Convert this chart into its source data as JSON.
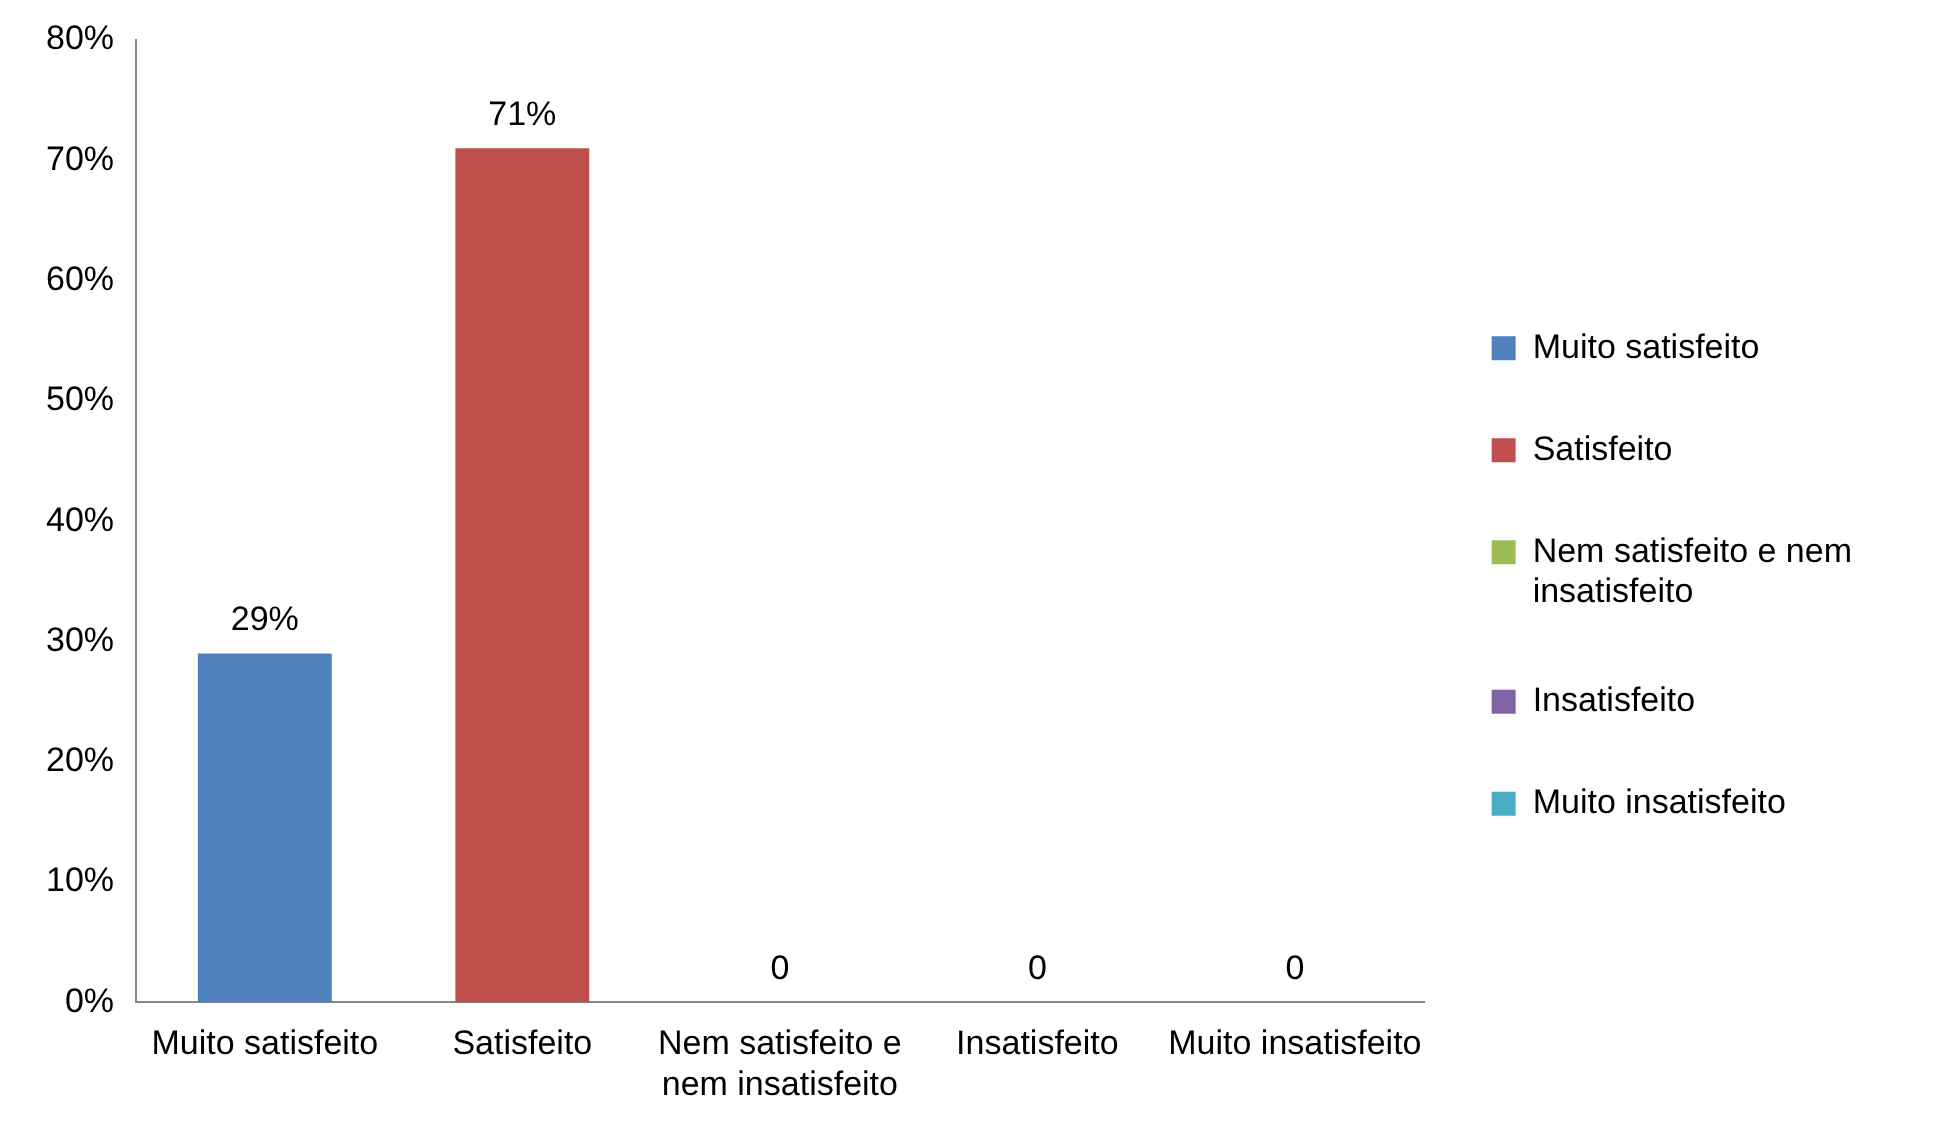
{
  "chart_data": {
    "type": "bar",
    "categories": [
      "Muito satisfeito",
      "Satisfeito",
      "Nem satisfeito e nem insatisfeito",
      "Insatisfeito",
      "Muito insatisfeito"
    ],
    "series": [
      {
        "name": "Muito satisfeito",
        "color": "#4f81bd",
        "values": [
          29,
          null,
          null,
          null,
          null
        ],
        "value_labels": [
          "29%",
          null,
          null,
          null,
          null
        ]
      },
      {
        "name": "Satisfeito",
        "color": "#c0504d",
        "values": [
          null,
          71,
          null,
          null,
          null
        ],
        "value_labels": [
          null,
          "71%",
          null,
          null,
          null
        ]
      },
      {
        "name": "Nem satisfeito e nem insatisfeito",
        "color": "#9bbb59",
        "values": [
          null,
          null,
          0,
          null,
          null
        ],
        "value_labels": [
          null,
          null,
          "0",
          null,
          null
        ]
      },
      {
        "name": "Insatisfeito",
        "color": "#8064a2",
        "values": [
          null,
          null,
          null,
          0,
          null
        ],
        "value_labels": [
          null,
          null,
          null,
          "0",
          null
        ]
      },
      {
        "name": "Muito insatisfeito",
        "color": "#4bacc6",
        "values": [
          null,
          null,
          null,
          null,
          0
        ],
        "value_labels": [
          null,
          null,
          null,
          null,
          "0"
        ]
      }
    ],
    "ylim": [
      0,
      80
    ],
    "yticks": [
      {
        "value": 0,
        "label": "0%"
      },
      {
        "value": 10,
        "label": "10%"
      },
      {
        "value": 20,
        "label": "20%"
      },
      {
        "value": 30,
        "label": "30%"
      },
      {
        "value": 40,
        "label": "40%"
      },
      {
        "value": 50,
        "label": "50%"
      },
      {
        "value": 60,
        "label": "60%"
      },
      {
        "value": 70,
        "label": "70%"
      },
      {
        "value": 80,
        "label": "80%"
      }
    ],
    "grid": false,
    "legend": "right"
  }
}
